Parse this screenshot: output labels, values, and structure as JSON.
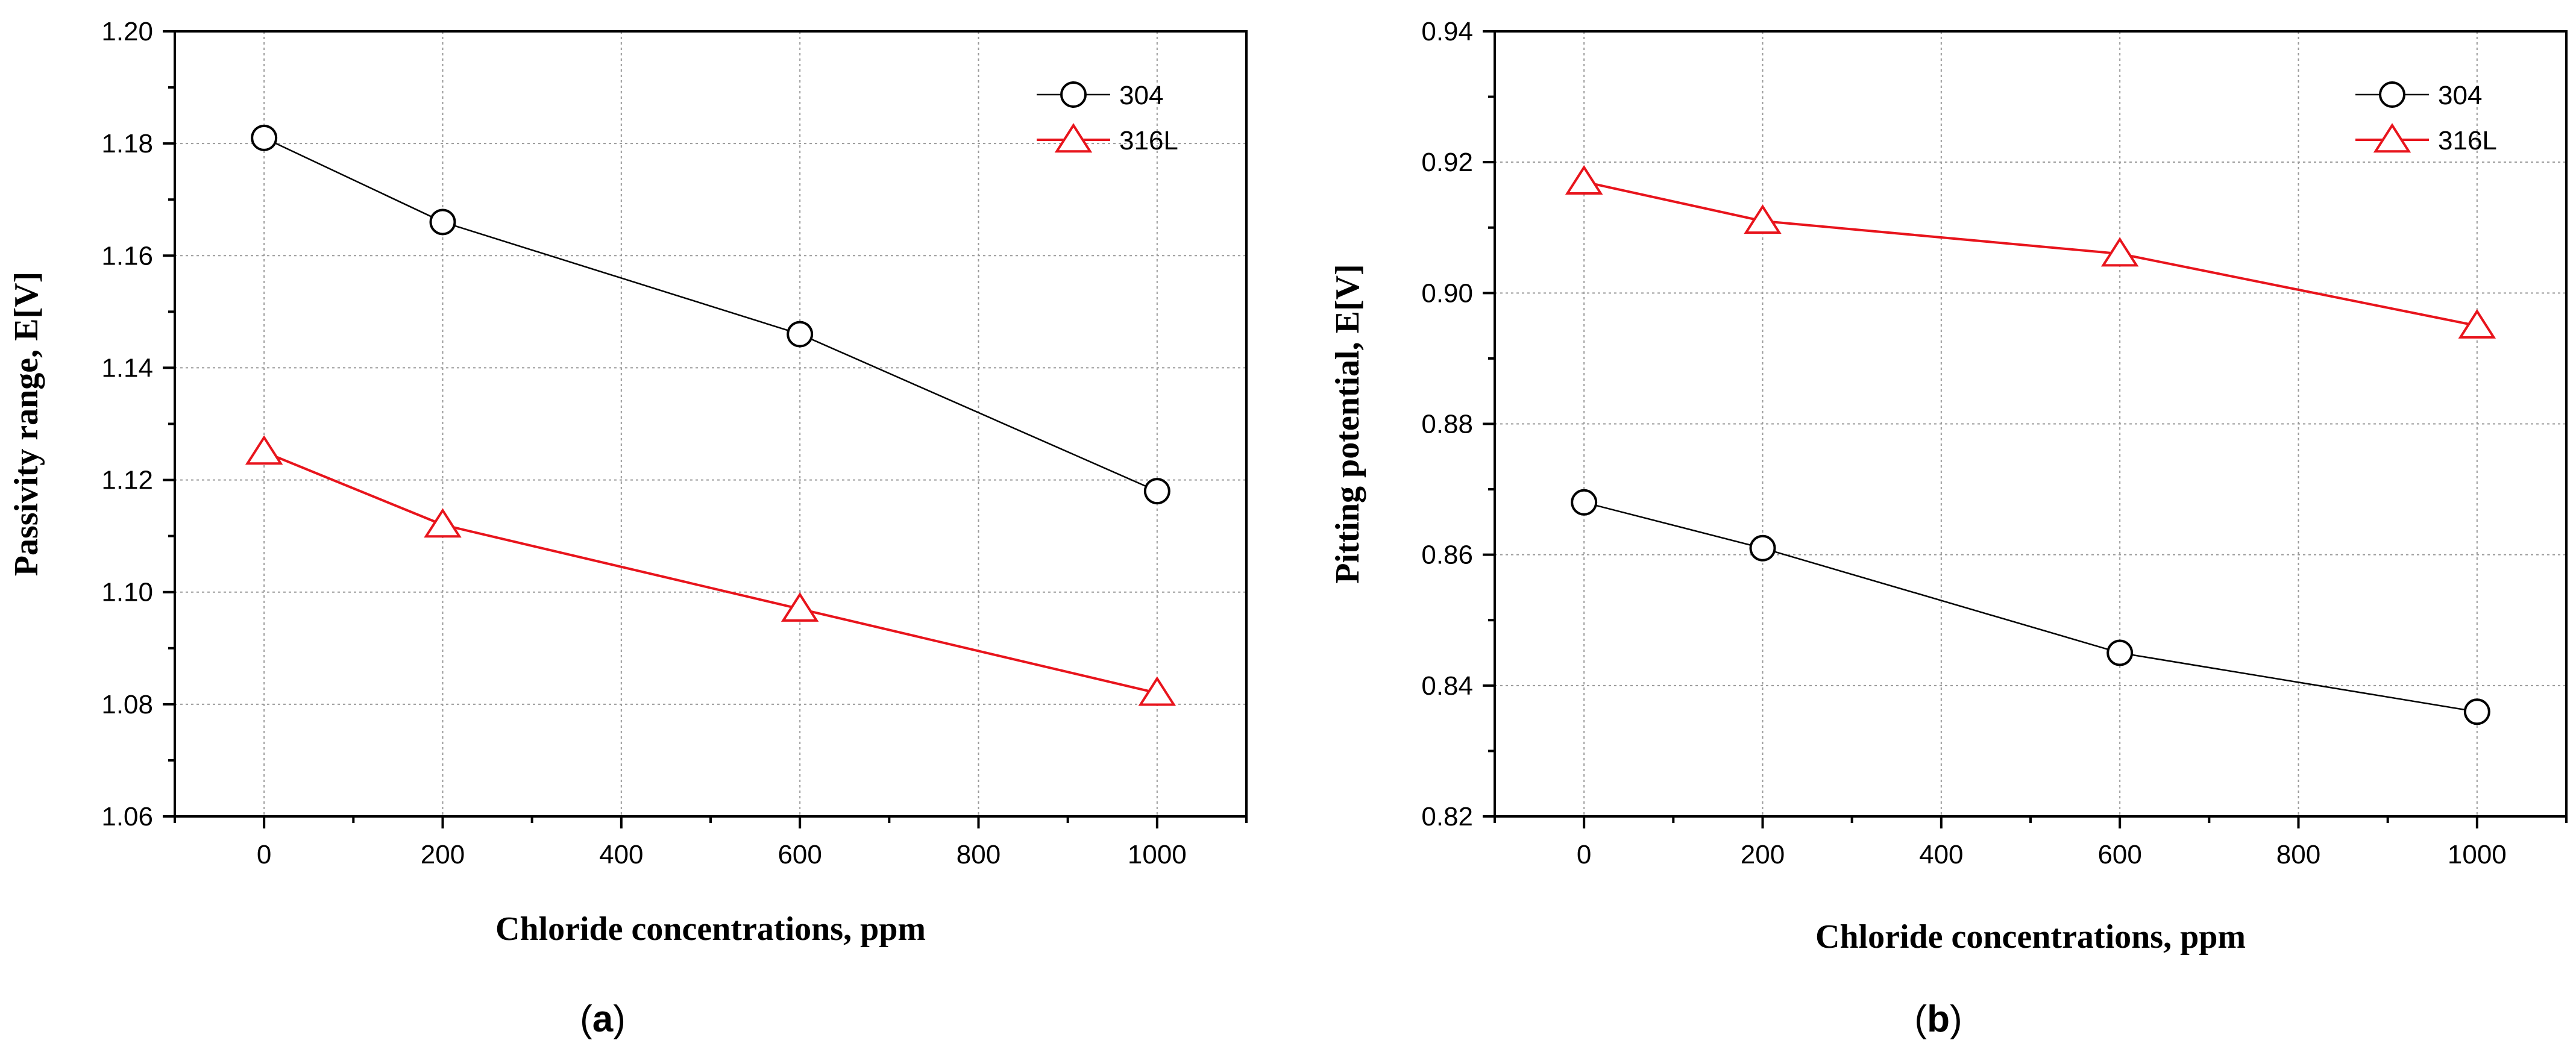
{
  "chart_data": [
    {
      "type": "line",
      "panel_caption_prefix": "(",
      "panel_label": "a",
      "panel_caption_suffix": ")",
      "xlabel": "Chloride concentrations, ppm",
      "ylabel": "Passivity range, E[V]",
      "xlim": [
        -100,
        1100
      ],
      "ylim": [
        1.06,
        1.2
      ],
      "x_ticks": [
        0,
        200,
        400,
        600,
        800,
        1000
      ],
      "y_ticks": [
        1.06,
        1.08,
        1.1,
        1.12,
        1.14,
        1.16,
        1.18,
        1.2
      ],
      "y_tick_labels": [
        "1.06",
        "1.08",
        "1.10",
        "1.12",
        "1.14",
        "1.16",
        "1.18",
        "1.20"
      ],
      "grid": true,
      "legend_position": "top-right",
      "series": [
        {
          "name": "304",
          "color": "#000000",
          "marker": "circle",
          "x": [
            0,
            200,
            600,
            1000
          ],
          "y": [
            1.181,
            1.166,
            1.146,
            1.118
          ]
        },
        {
          "name": "316L",
          "color": "#e8141c",
          "marker": "triangle",
          "x": [
            0,
            200,
            600,
            1000
          ],
          "y": [
            1.125,
            1.112,
            1.097,
            1.082
          ]
        }
      ]
    },
    {
      "type": "line",
      "panel_caption_prefix": "(",
      "panel_label": "b",
      "panel_caption_suffix": ")",
      "xlabel": "Chloride concentrations, ppm",
      "ylabel": "Pitting potential, E[V]",
      "xlim": [
        -100,
        1100
      ],
      "ylim": [
        0.82,
        0.94
      ],
      "x_ticks": [
        0,
        200,
        400,
        600,
        800,
        1000
      ],
      "y_ticks": [
        0.82,
        0.84,
        0.86,
        0.88,
        0.9,
        0.92,
        0.94
      ],
      "y_tick_labels": [
        "0.82",
        "0.84",
        "0.86",
        "0.88",
        "0.90",
        "0.92",
        "0.94"
      ],
      "grid": true,
      "legend_position": "top-right",
      "series": [
        {
          "name": "304",
          "color": "#000000",
          "marker": "circle",
          "x": [
            0,
            200,
            600,
            1000
          ],
          "y": [
            0.868,
            0.861,
            0.845,
            0.836
          ]
        },
        {
          "name": "316L",
          "color": "#e8141c",
          "marker": "triangle",
          "x": [
            0,
            200,
            600,
            1000
          ],
          "y": [
            0.917,
            0.911,
            0.906,
            0.895
          ]
        }
      ]
    }
  ]
}
